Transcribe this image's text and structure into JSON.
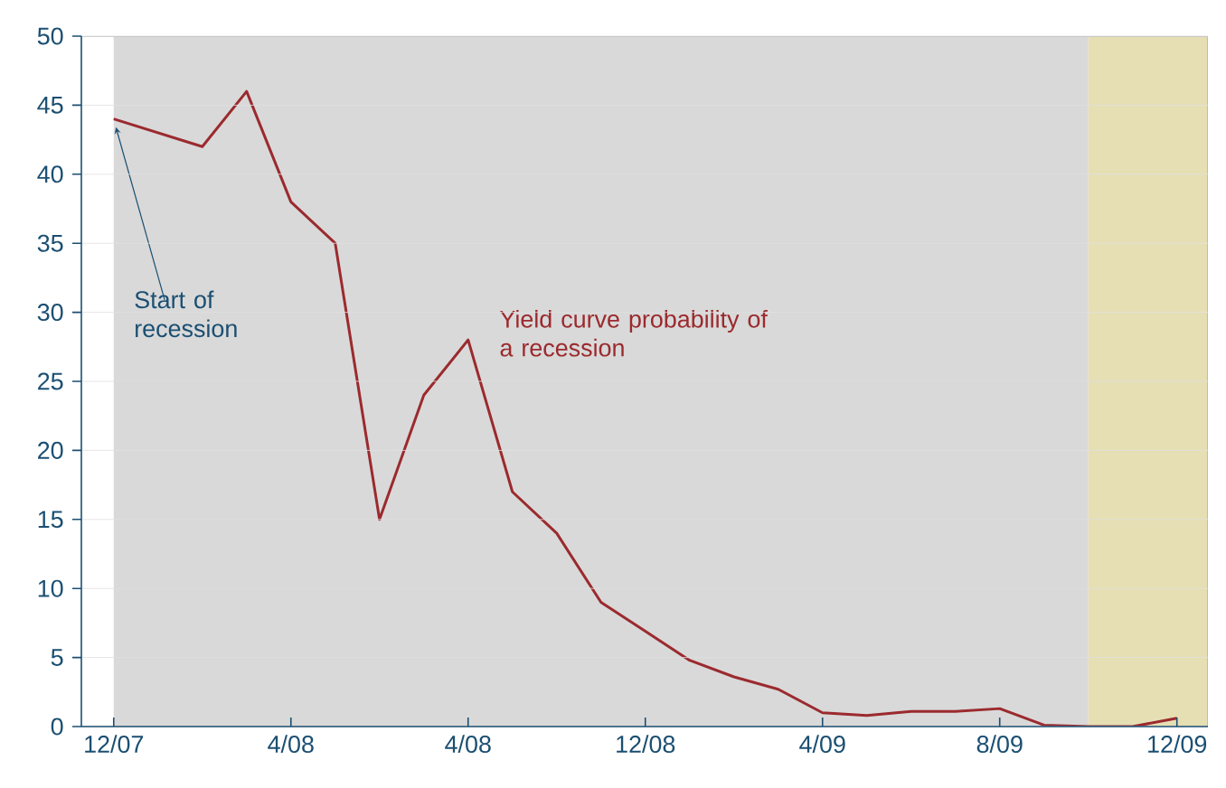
{
  "chart_data": {
    "type": "line",
    "categories": [
      "12/07",
      null,
      null,
      null,
      "4/08",
      null,
      null,
      null,
      "4/08",
      null,
      null,
      null,
      "12/08",
      null,
      null,
      null,
      "4/09",
      null,
      null,
      null,
      "8/09",
      null,
      null,
      null,
      "12/09"
    ],
    "series": [
      {
        "name": "Yield curve probability of a recession",
        "color": "#9b2a2e",
        "values": [
          44,
          43,
          42,
          46,
          38,
          35,
          15,
          24,
          28,
          17,
          14,
          9,
          6.9,
          4.8,
          3.6,
          2.7,
          1,
          0.8,
          1.1,
          1.1,
          1.3,
          0.1,
          0,
          0,
          0.6
        ]
      }
    ],
    "ylim": [
      0,
      50
    ],
    "yticks": [
      0,
      5,
      10,
      15,
      20,
      25,
      30,
      35,
      40,
      45,
      50
    ],
    "annotations": [
      {
        "text": "Start of recession",
        "x": "12/07",
        "y": 44
      }
    ],
    "grid": "y",
    "marker": "none",
    "line_style": "solid"
  }
}
